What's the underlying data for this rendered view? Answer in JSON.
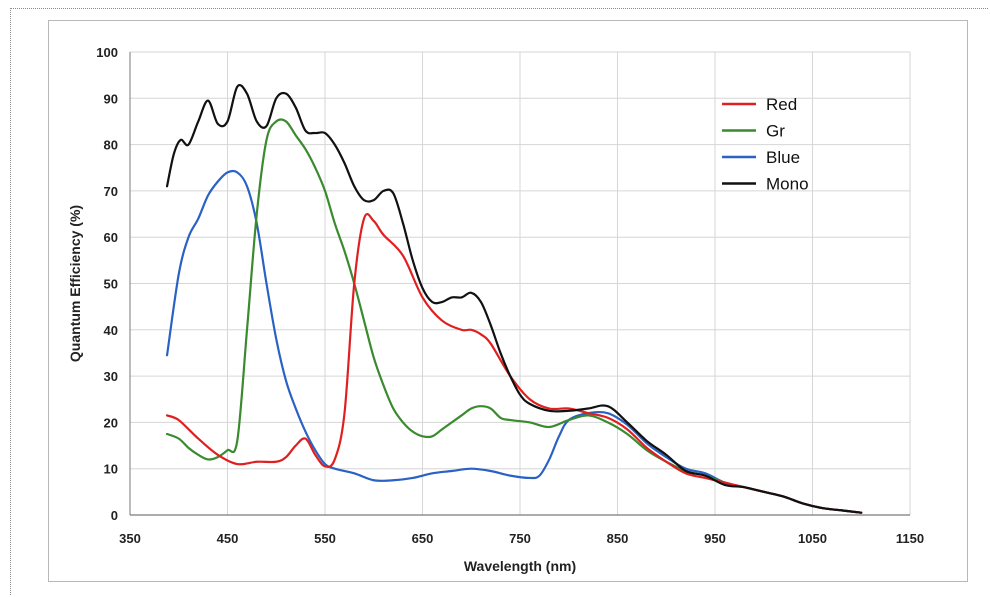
{
  "chart_data": {
    "type": "line",
    "title": "",
    "xlabel": "Wavelength (nm)",
    "ylabel": "Quantum Efficiency (%)",
    "xlim": [
      350,
      1150
    ],
    "ylim": [
      0,
      100
    ],
    "xticks": [
      350,
      450,
      550,
      650,
      750,
      850,
      950,
      1050,
      1150
    ],
    "yticks": [
      0,
      10,
      20,
      30,
      40,
      50,
      60,
      70,
      80,
      90,
      100
    ],
    "grid": true,
    "legend_position": "top-right",
    "series": [
      {
        "name": "Red",
        "color": "#e02020",
        "x": [
          388,
          400,
          420,
          440,
          460,
          480,
          500,
          510,
          520,
          530,
          540,
          550,
          560,
          570,
          580,
          590,
          600,
          610,
          630,
          650,
          670,
          690,
          700,
          710,
          720,
          740,
          760,
          780,
          800,
          820,
          840,
          860,
          880,
          900,
          920,
          940,
          960,
          980,
          1000,
          1020,
          1040,
          1060,
          1080,
          1100
        ],
        "y": [
          21.5,
          20.5,
          16.5,
          13,
          11,
          11.5,
          11.5,
          12.5,
          15,
          16.5,
          13,
          10.5,
          12,
          22,
          50,
          64,
          63.5,
          60.5,
          56,
          47,
          42,
          40,
          40,
          39,
          37,
          30,
          25,
          23,
          23,
          22,
          21,
          18.5,
          14.5,
          11.5,
          9,
          8,
          7,
          6,
          5,
          4,
          2.5,
          1.5,
          1,
          0.5
        ]
      },
      {
        "name": "Gr",
        "color": "#3a8a2e",
        "x": [
          388,
          400,
          410,
          420,
          430,
          440,
          450,
          460,
          470,
          480,
          490,
          500,
          510,
          520,
          530,
          540,
          550,
          560,
          570,
          580,
          590,
          600,
          610,
          620,
          630,
          640,
          650,
          660,
          670,
          680,
          690,
          700,
          710,
          720,
          730,
          740,
          760,
          780,
          800,
          820,
          840,
          860,
          880,
          900,
          920,
          940,
          960,
          980,
          1000,
          1020,
          1040,
          1060,
          1080,
          1100
        ],
        "y": [
          17.5,
          16.5,
          14.5,
          13,
          12,
          12.5,
          14,
          16,
          40,
          65,
          81,
          85,
          85,
          82,
          79,
          75,
          70,
          63,
          57,
          50,
          42,
          34,
          28,
          23,
          20,
          18,
          17,
          17,
          18.5,
          20,
          21.5,
          23,
          23.5,
          23,
          21,
          20.5,
          20,
          19,
          20.5,
          21.5,
          20,
          17.5,
          14,
          11.5,
          9.5,
          8.5,
          7,
          6,
          5,
          4,
          2.5,
          1.5,
          1,
          0.5
        ]
      },
      {
        "name": "Blue",
        "color": "#2962c4",
        "x": [
          388,
          400,
          410,
          420,
          430,
          440,
          450,
          460,
          470,
          480,
          490,
          500,
          510,
          520,
          530,
          540,
          550,
          560,
          580,
          600,
          620,
          640,
          660,
          680,
          700,
          720,
          740,
          760,
          770,
          780,
          790,
          800,
          820,
          840,
          860,
          880,
          900,
          920,
          940,
          960,
          980,
          1000,
          1020,
          1040,
          1060,
          1080,
          1100
        ],
        "y": [
          34.5,
          52,
          60,
          64,
          69,
          72,
          74,
          74,
          71,
          63,
          50,
          38,
          29,
          23,
          18,
          14,
          11,
          10,
          9,
          7.5,
          7.5,
          8,
          9,
          9.5,
          10,
          9.5,
          8.5,
          8,
          8.5,
          12,
          17,
          20.5,
          22,
          22,
          19.5,
          15.5,
          12.5,
          10,
          9,
          7,
          6,
          5,
          4,
          2.5,
          1.5,
          1,
          0.5
        ]
      },
      {
        "name": "Mono",
        "color": "#111111",
        "x": [
          388,
          395,
          402,
          410,
          420,
          430,
          440,
          450,
          460,
          470,
          480,
          490,
          500,
          510,
          520,
          530,
          540,
          550,
          560,
          570,
          580,
          590,
          600,
          610,
          620,
          630,
          640,
          650,
          660,
          670,
          680,
          690,
          700,
          710,
          720,
          730,
          740,
          750,
          760,
          780,
          800,
          820,
          840,
          860,
          880,
          900,
          920,
          940,
          960,
          980,
          1000,
          1020,
          1040,
          1060,
          1080,
          1100
        ],
        "y": [
          71,
          78,
          81,
          80,
          85,
          89.5,
          84.5,
          85,
          92.5,
          91,
          85,
          84,
          90,
          91,
          88,
          83,
          82.5,
          82.5,
          80,
          76,
          71,
          68,
          68,
          70,
          69.5,
          63,
          55,
          49,
          46,
          46,
          47,
          47,
          48,
          46,
          41,
          35,
          30,
          26,
          24,
          22.5,
          22.5,
          23,
          23.5,
          20,
          16,
          13,
          9.5,
          8.5,
          6.5,
          6,
          5,
          4,
          2.5,
          1.5,
          1,
          0.5
        ]
      }
    ]
  }
}
